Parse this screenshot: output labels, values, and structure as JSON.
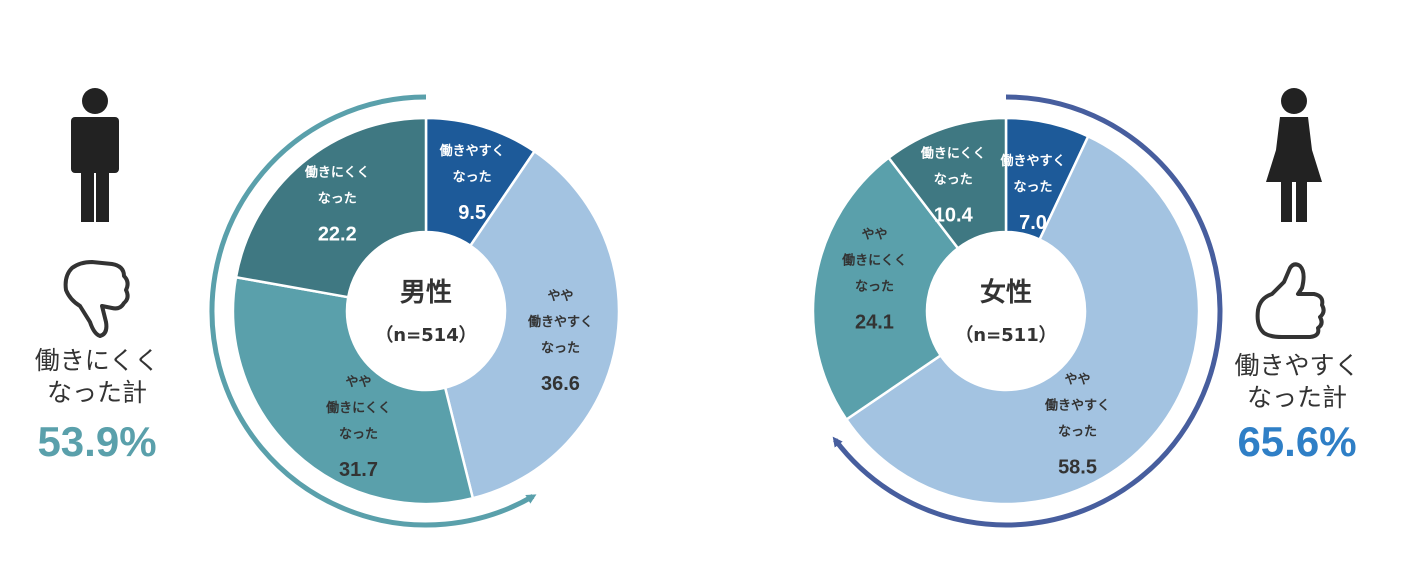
{
  "colors": {
    "dark_blue": "#1d5a99",
    "light_blue": "#a3c3e1",
    "teal_dark": "#3f7882",
    "teal_light": "#5aa0ab",
    "arrow_male": "#5aa0ab",
    "arrow_female": "#475e9e",
    "total_male": "#5aa0ab",
    "total_female": "#2f7fc6",
    "icon": "#222222"
  },
  "male_panel": {
    "person_icon": "male-person-icon",
    "thumb_icon": "thumbs-down-icon",
    "label_line1": "働きにくく",
    "label_line2": "なった計",
    "total": "53.9%"
  },
  "female_panel": {
    "person_icon": "female-person-icon",
    "thumb_icon": "thumbs-up-icon",
    "label_line1": "働きやすく",
    "label_line2": "なった計",
    "total": "65.6%"
  },
  "chart_data": [
    {
      "type": "pie",
      "center_title": "男性",
      "center_n": "（n=514）",
      "slices": [
        {
          "label_lines": [
            "働きやすく",
            "なった"
          ],
          "value": 9.5,
          "value_label": "9.5",
          "color": "#1d5a99",
          "text_color": "#ffffff"
        },
        {
          "label_lines": [
            "やや",
            "働きやすく",
            "なった"
          ],
          "value": 36.6,
          "value_label": "36.6",
          "color": "#a3c3e1",
          "text_color": "#333333"
        },
        {
          "label_lines": [
            "やや",
            "働きにくく",
            "なった"
          ],
          "value": 31.7,
          "value_label": "31.7",
          "color": "#5aa0ab",
          "text_color": "#333333"
        },
        {
          "label_lines": [
            "働きにくく",
            "なった"
          ],
          "value": 22.2,
          "value_label": "22.2",
          "color": "#3f7882",
          "text_color": "#ffffff"
        }
      ]
    },
    {
      "type": "pie",
      "center_title": "女性",
      "center_n": "（n=511）",
      "slices": [
        {
          "label_lines": [
            "働きやすく",
            "なった"
          ],
          "value": 7.0,
          "value_label": "7.0",
          "color": "#1d5a99",
          "text_color": "#ffffff"
        },
        {
          "label_lines": [
            "やや",
            "働きやすく",
            "なった"
          ],
          "value": 58.5,
          "value_label": "58.5",
          "color": "#a3c3e1",
          "text_color": "#333333"
        },
        {
          "label_lines": [
            "やや",
            "働きにくく",
            "なった"
          ],
          "value": 24.1,
          "value_label": "24.1",
          "color": "#5aa0ab",
          "text_color": "#333333"
        },
        {
          "label_lines": [
            "働きにくく",
            "なった"
          ],
          "value": 10.4,
          "value_label": "10.4",
          "color": "#3f7882",
          "text_color": "#ffffff"
        }
      ]
    }
  ]
}
